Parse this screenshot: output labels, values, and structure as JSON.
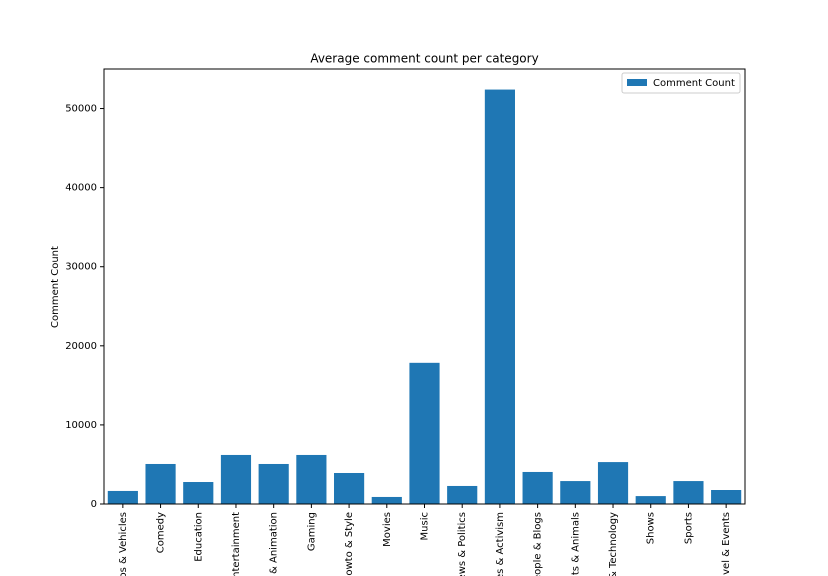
{
  "chart_data": {
    "type": "bar",
    "title": "Average comment count per category",
    "ylabel": "Comment Count",
    "categories": [
      "os & Vehicles",
      "Comedy",
      "Education",
      "ntertainment",
      "& Animation",
      "Gaming",
      "owto & Style",
      "Movies",
      "Music",
      "ews & Politics",
      "es & Activism",
      "eople & Blogs",
      "ts & Animals",
      "& Technology",
      "Shows",
      "Sports",
      "vel & Events"
    ],
    "series": [
      {
        "name": "Comment Count",
        "color": "#1f77b4",
        "values": [
          1650,
          5060,
          2780,
          6200,
          5060,
          6200,
          3920,
          890,
          17850,
          2280,
          52400,
          4050,
          2900,
          5300,
          1000,
          2900,
          1770
        ]
      }
    ],
    "ylim": [
      0,
      55000
    ],
    "yticks": [
      0,
      10000,
      20000,
      30000,
      40000,
      50000
    ],
    "legend": "upper right"
  }
}
